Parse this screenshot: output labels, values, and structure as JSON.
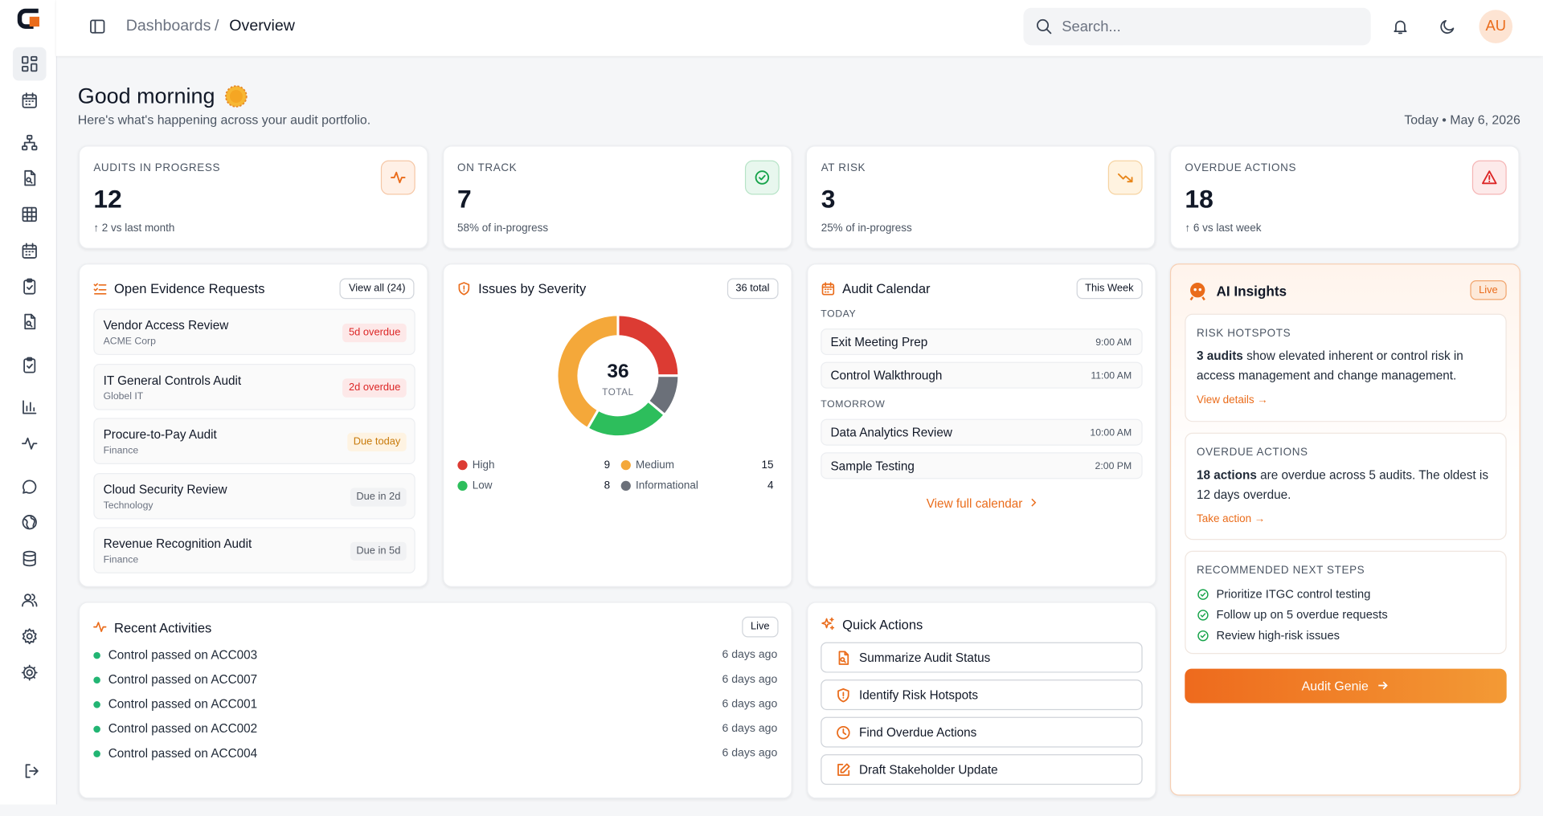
{
  "header": {
    "breadcrumb": [
      "Dashboards",
      "Overview"
    ],
    "separator": "/",
    "search_placeholder": "Search...",
    "avatar": "AU"
  },
  "greeting": {
    "title": "Good morning",
    "subtitle": "Here's what's happening across your audit portfolio.",
    "date": "Today • May 6, 2026"
  },
  "kpis": [
    {
      "label": "AUDITS IN PROGRESS",
      "value": 12,
      "note": "↑ 2 vs last month"
    },
    {
      "label": "ON TRACK",
      "value": 7,
      "note": "58% of in-progress"
    },
    {
      "label": "AT RISK",
      "value": 3,
      "note": "25% of in-progress"
    },
    {
      "label": "OVERDUE ACTIONS",
      "value": 18,
      "note": "↑ 6 vs last week"
    }
  ],
  "evidence_requests": {
    "title": "Open Evidence Requests",
    "button": "View all (24)",
    "items": [
      {
        "name": "Vendor Access Review",
        "org": "ACME Corp",
        "status": "5d overdue"
      },
      {
        "name": "IT General Controls Audit",
        "org": "Globel IT",
        "status": "2d overdue"
      },
      {
        "name": "Procure-to-Pay Audit",
        "org": "Finance",
        "status": "Due today"
      },
      {
        "name": "Cloud Security Review",
        "org": "Technology",
        "status": "Due in 2d"
      },
      {
        "name": "Revenue Recognition Audit",
        "org": "Finance",
        "status": "Due in 5d"
      }
    ]
  },
  "chart_data": {
    "type": "donut",
    "title": "Issues by Severity",
    "badge": "36 total",
    "total": 36,
    "total_label": "TOTAL",
    "categories": [
      "High",
      "Medium",
      "Low",
      "Informational"
    ],
    "values": [
      9,
      15,
      8,
      4
    ],
    "colors": [
      "#dc3b33",
      "#f4a83a",
      "#2dbe5c",
      "#6b7079"
    ]
  },
  "calendar": {
    "title": "Audit Calendar",
    "button": "This Week",
    "groups": [
      {
        "label": "TODAY",
        "events": [
          {
            "name": "Exit Meeting Prep",
            "time": "9:00 AM"
          },
          {
            "name": "Control Walkthrough",
            "time": "11:00 AM"
          }
        ]
      },
      {
        "label": "TOMORROW",
        "events": [
          {
            "name": "Data Analytics Review",
            "time": "10:00 AM"
          },
          {
            "name": "Sample Testing",
            "time": "2:00 PM"
          }
        ]
      }
    ],
    "link": "View full calendar"
  },
  "ai_insights": {
    "title": "AI Insights",
    "badge": "Live",
    "sections": [
      {
        "title": "RISK HOTSPOTS",
        "bold": "3 audits",
        "text": " show elevated inherent or control risk in access management and change management.",
        "link": "View details →"
      },
      {
        "title": "OVERDUE ACTIONS",
        "bold": "18 actions",
        "text": " are overdue across 5 audits. The oldest is 12 days overdue.",
        "link": "Take action →"
      }
    ],
    "next_steps": {
      "title": "RECOMMENDED NEXT STEPS",
      "items": [
        "Prioritize ITGC control testing",
        "Follow up on 5 overdue requests",
        "Review high-risk issues"
      ]
    },
    "button": "Audit Genie"
  },
  "recent_activities": {
    "title": "Recent Activities",
    "badge": "Live",
    "items": [
      {
        "text": "Control passed on ACC003",
        "time": "6 days ago"
      },
      {
        "text": "Control passed on ACC007",
        "time": "6 days ago"
      },
      {
        "text": "Control passed on ACC001",
        "time": "6 days ago"
      },
      {
        "text": "Control passed on ACC002",
        "time": "6 days ago"
      },
      {
        "text": "Control passed on ACC004",
        "time": "6 days ago"
      }
    ]
  },
  "quick_actions": {
    "title": "Quick Actions",
    "items": [
      "Summarize Audit Status",
      "Identify Risk Hotspots",
      "Find Overdue Actions",
      "Draft Stakeholder Update"
    ]
  }
}
